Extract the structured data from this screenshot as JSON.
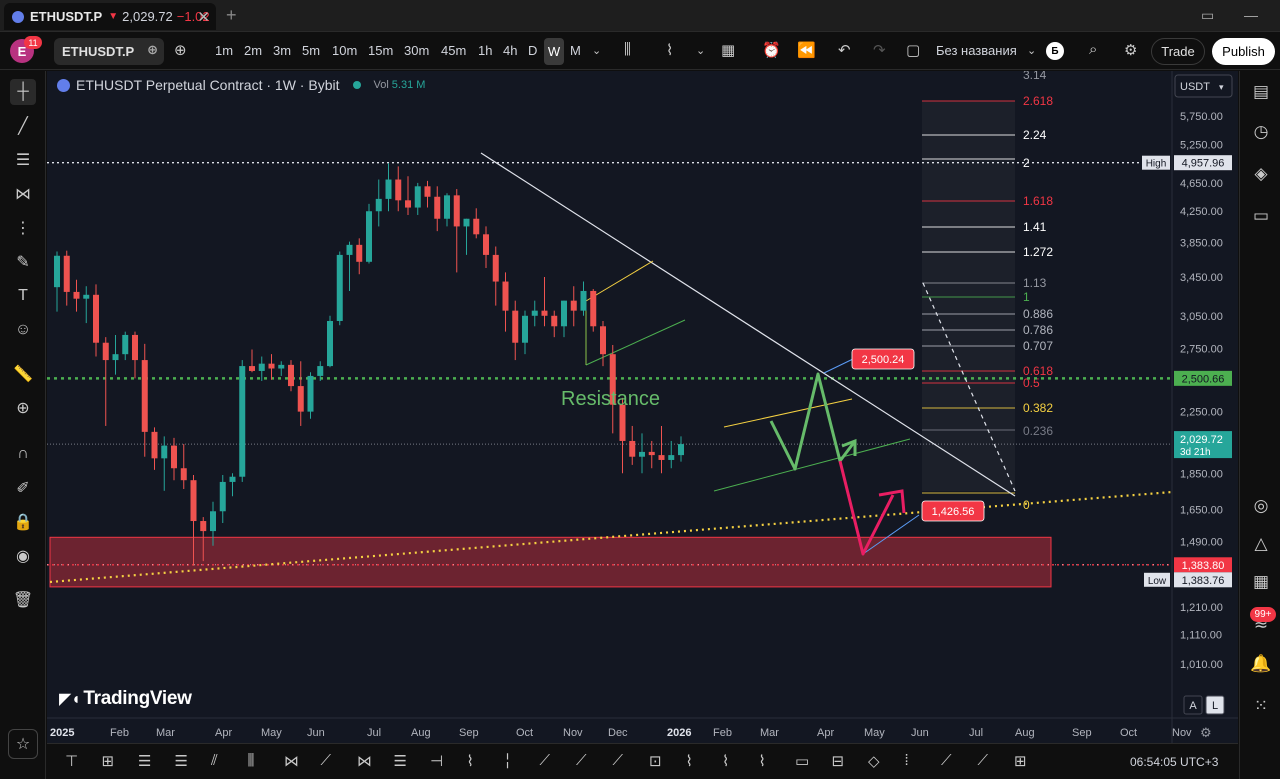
{
  "tab": {
    "symbol": "ETHUSDT.P",
    "arrow": "▼",
    "price": "2,029.72",
    "change": "−1.02"
  },
  "toolbar": {
    "symbol": "ETHUSDT.P",
    "avatar_letter": "E",
    "avatar_badge": "11",
    "timeframes": [
      "1m",
      "2m",
      "3m",
      "5m",
      "10m",
      "15m",
      "30m",
      "45m",
      "1h",
      "4h",
      "D",
      "W",
      "M"
    ],
    "active_timeframe": "W",
    "layout_name": "Без названия",
    "layout_badge": "Б",
    "trade_label": "Trade",
    "publish_label": "Publish"
  },
  "legend": {
    "title": "ETHUSDT Perpetual Contract · 1W · Bybit",
    "vol_label": "Vol",
    "vol_value": "5.31 M"
  },
  "brand": "TradingView",
  "currency": "USDT",
  "alerts_badge": "99+",
  "clock": "06:54:05 UTC+3",
  "scale_buttons": [
    "A",
    "L"
  ],
  "chart_data": {
    "type": "candlestick",
    "symbol": "ETHUSDT",
    "interval": "1W",
    "y_ticks": [
      5750,
      5250,
      4650,
      4250,
      3850,
      3450,
      3050,
      2750,
      2500,
      2250,
      1850,
      1650,
      1490,
      1210,
      1110,
      1010
    ],
    "y_tick_labels": [
      "5,750.00",
      "5,250.00",
      "4,650.00",
      "4,250.00",
      "3,850.00",
      "3,450.00",
      "3,050.00",
      "2,750.00",
      "2,500.00",
      "2,250.00",
      "1,850.00",
      "1,650.00",
      "1,490.00",
      "1,210.00",
      "1,110.00",
      "1,010.00"
    ],
    "x_labels": [
      "2025",
      "Feb",
      "Mar",
      "Apr",
      "May",
      "Jun",
      "Jul",
      "Aug",
      "Sep",
      "Oct",
      "Nov",
      "Dec",
      "2026",
      "Feb",
      "Mar",
      "Apr",
      "May",
      "Jun",
      "Jul",
      "Aug",
      "Sep",
      "Oct",
      "Nov"
    ],
    "price_labels": {
      "high_label": "High",
      "high_value": "4,957.96",
      "level_value": "2,500.66",
      "current_value": "2,029.72",
      "current_countdown": "3d 21h",
      "support_value": "1,383.80",
      "low_label": "Low",
      "low_value": "1,383.76"
    },
    "annotations": {
      "resistance": "Resistance",
      "target_top": "2,500.24",
      "target_bottom": "1,426.56"
    },
    "fib_levels": [
      {
        "label": "3.14",
        "color": "#9598a1"
      },
      {
        "label": "2.618",
        "color": "#f23645"
      },
      {
        "label": "2.24",
        "color": "#ffffff"
      },
      {
        "label": "2",
        "color": "#ffffff"
      },
      {
        "label": "1.618",
        "color": "#f23645"
      },
      {
        "label": "1.41",
        "color": "#ffffff"
      },
      {
        "label": "1.272",
        "color": "#ffffff"
      },
      {
        "label": "1.13",
        "color": "#9598a1"
      },
      {
        "label": "1",
        "color": "#4caf50"
      },
      {
        "label": "0.886",
        "color": "#b2b5be"
      },
      {
        "label": "0.786",
        "color": "#b2b5be"
      },
      {
        "label": "0.707",
        "color": "#b2b5be"
      },
      {
        "label": "0.618",
        "color": "#f23645"
      },
      {
        "label": "0.5",
        "color": "#f23645"
      },
      {
        "label": "0.382",
        "color": "#f5d142"
      },
      {
        "label": "0.236",
        "color": "#787b86"
      },
      {
        "label": "0",
        "color": "#f5d142"
      }
    ],
    "candles": [
      {
        "o": 3340,
        "h": 3740,
        "l": 3090,
        "c": 3690
      },
      {
        "o": 3690,
        "h": 3750,
        "l": 3150,
        "c": 3290
      },
      {
        "o": 3290,
        "h": 3420,
        "l": 3090,
        "c": 3220
      },
      {
        "o": 3220,
        "h": 3350,
        "l": 2980,
        "c": 3260
      },
      {
        "o": 3260,
        "h": 3370,
        "l": 2680,
        "c": 2800
      },
      {
        "o": 2800,
        "h": 2850,
        "l": 2150,
        "c": 2650
      },
      {
        "o": 2650,
        "h": 2870,
        "l": 2530,
        "c": 2700
      },
      {
        "o": 2700,
        "h": 2900,
        "l": 2650,
        "c": 2870
      },
      {
        "o": 2870,
        "h": 2900,
        "l": 2500,
        "c": 2650
      },
      {
        "o": 2650,
        "h": 2790,
        "l": 1950,
        "c": 2110
      },
      {
        "o": 2110,
        "h": 2140,
        "l": 1870,
        "c": 1940
      },
      {
        "o": 1940,
        "h": 2080,
        "l": 1750,
        "c": 2020
      },
      {
        "o": 2020,
        "h": 2070,
        "l": 1810,
        "c": 1880
      },
      {
        "o": 1880,
        "h": 2030,
        "l": 1760,
        "c": 1810
      },
      {
        "o": 1810,
        "h": 1840,
        "l": 1380,
        "c": 1590
      },
      {
        "o": 1590,
        "h": 1610,
        "l": 1400,
        "c": 1540
      },
      {
        "o": 1540,
        "h": 1690,
        "l": 1470,
        "c": 1640
      },
      {
        "o": 1640,
        "h": 1840,
        "l": 1580,
        "c": 1800
      },
      {
        "o": 1800,
        "h": 1850,
        "l": 1720,
        "c": 1830
      },
      {
        "o": 1830,
        "h": 2650,
        "l": 1800,
        "c": 2600
      },
      {
        "o": 2600,
        "h": 2740,
        "l": 2550,
        "c": 2560
      },
      {
        "o": 2560,
        "h": 2680,
        "l": 2480,
        "c": 2620
      },
      {
        "o": 2620,
        "h": 2700,
        "l": 2490,
        "c": 2580
      },
      {
        "o": 2580,
        "h": 2640,
        "l": 2520,
        "c": 2610
      },
      {
        "o": 2610,
        "h": 2650,
        "l": 2400,
        "c": 2440
      },
      {
        "o": 2440,
        "h": 2640,
        "l": 2150,
        "c": 2250
      },
      {
        "o": 2250,
        "h": 2550,
        "l": 2200,
        "c": 2520
      },
      {
        "o": 2520,
        "h": 2640,
        "l": 2480,
        "c": 2600
      },
      {
        "o": 2600,
        "h": 3050,
        "l": 2590,
        "c": 3000
      },
      {
        "o": 3000,
        "h": 3740,
        "l": 2960,
        "c": 3700
      },
      {
        "o": 3700,
        "h": 3860,
        "l": 3300,
        "c": 3820
      },
      {
        "o": 3820,
        "h": 3900,
        "l": 3480,
        "c": 3620
      },
      {
        "o": 3620,
        "h": 4350,
        "l": 3600,
        "c": 4250
      },
      {
        "o": 4250,
        "h": 4700,
        "l": 4050,
        "c": 4420
      },
      {
        "o": 4420,
        "h": 4950,
        "l": 4250,
        "c": 4700
      },
      {
        "o": 4700,
        "h": 4900,
        "l": 4250,
        "c": 4400
      },
      {
        "o": 4400,
        "h": 4750,
        "l": 4200,
        "c": 4300
      },
      {
        "o": 4300,
        "h": 4650,
        "l": 4200,
        "c": 4600
      },
      {
        "o": 4600,
        "h": 4680,
        "l": 4300,
        "c": 4450
      },
      {
        "o": 4450,
        "h": 4600,
        "l": 3990,
        "c": 4150
      },
      {
        "o": 4150,
        "h": 4500,
        "l": 4050,
        "c": 4470
      },
      {
        "o": 4470,
        "h": 4560,
        "l": 3500,
        "c": 4050
      },
      {
        "o": 4050,
        "h": 4150,
        "l": 3700,
        "c": 4150
      },
      {
        "o": 4150,
        "h": 4290,
        "l": 3900,
        "c": 3950
      },
      {
        "o": 3950,
        "h": 4050,
        "l": 3550,
        "c": 3700
      },
      {
        "o": 3700,
        "h": 3800,
        "l": 3150,
        "c": 3400
      },
      {
        "o": 3400,
        "h": 3500,
        "l": 2900,
        "c": 3100
      },
      {
        "o": 3100,
        "h": 3200,
        "l": 2650,
        "c": 2800
      },
      {
        "o": 2800,
        "h": 3100,
        "l": 2700,
        "c": 3050
      },
      {
        "o": 3050,
        "h": 3200,
        "l": 2950,
        "c": 3100
      },
      {
        "o": 3100,
        "h": 3450,
        "l": 2950,
        "c": 3050
      },
      {
        "o": 3050,
        "h": 3100,
        "l": 2850,
        "c": 2950
      },
      {
        "o": 2950,
        "h": 3200,
        "l": 2850,
        "c": 3200
      },
      {
        "o": 3200,
        "h": 3350,
        "l": 2950,
        "c": 3100
      },
      {
        "o": 3100,
        "h": 3400,
        "l": 3050,
        "c": 3300
      },
      {
        "o": 3300,
        "h": 3320,
        "l": 2900,
        "c": 2950
      },
      {
        "o": 2950,
        "h": 3000,
        "l": 2600,
        "c": 2700
      },
      {
        "o": 2700,
        "h": 2780,
        "l": 2100,
        "c": 2300
      },
      {
        "o": 2300,
        "h": 2350,
        "l": 1850,
        "c": 2050
      },
      {
        "o": 2050,
        "h": 2150,
        "l": 1900,
        "c": 1950
      },
      {
        "o": 1950,
        "h": 2100,
        "l": 1850,
        "c": 1980
      },
      {
        "o": 1980,
        "h": 2050,
        "l": 1880,
        "c": 1960
      },
      {
        "o": 1960,
        "h": 2150,
        "l": 1850,
        "c": 1930
      },
      {
        "o": 1930,
        "h": 2050,
        "l": 1880,
        "c": 1960
      },
      {
        "o": 1960,
        "h": 2080,
        "l": 1920,
        "c": 2029.72
      }
    ]
  }
}
